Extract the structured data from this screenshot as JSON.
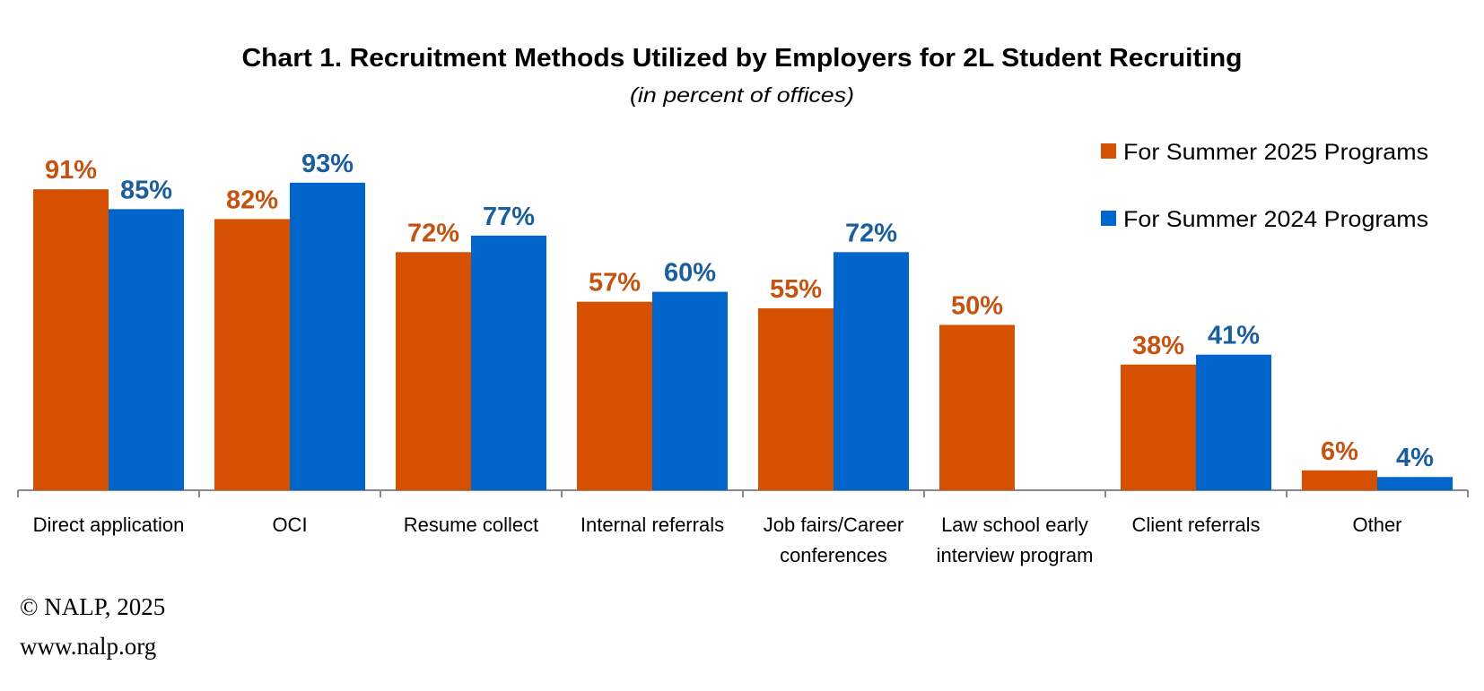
{
  "chart_data": {
    "type": "bar",
    "title": "Chart 1. Recruitment Methods Utilized by Employers for 2L Student Recruiting",
    "subtitle": "(in percent of offices)",
    "xlabel": "",
    "ylabel": "",
    "ylim": [
      0,
      100
    ],
    "grid": false,
    "legend_position": "top-right",
    "categories": [
      [
        "Direct application"
      ],
      [
        "OCI"
      ],
      [
        "Resume collect"
      ],
      [
        "Internal referrals"
      ],
      [
        "Job fairs/Career",
        "conferences"
      ],
      [
        "Law school early",
        "interview program"
      ],
      [
        "Client referrals"
      ],
      [
        "Other"
      ]
    ],
    "series": [
      {
        "name": "For Summer 2025 Programs",
        "color": "#D55000",
        "label_color": "#C5530F",
        "values": [
          91,
          82,
          72,
          57,
          55,
          50,
          38,
          6
        ],
        "labels": [
          "91%",
          "82%",
          "72%",
          "57%",
          "55%",
          "50%",
          "38%",
          "6%"
        ]
      },
      {
        "name": "For Summer 2024 Programs",
        "color": "#0066CC",
        "label_color": "#1A5E9E",
        "values": [
          85,
          93,
          77,
          60,
          72,
          null,
          41,
          4
        ],
        "labels": [
          "85%",
          "93%",
          "77%",
          "60%",
          "72%",
          null,
          "41%",
          "4%"
        ]
      }
    ]
  },
  "footer": {
    "copyright": "© NALP, 2025",
    "website": "www.nalp.org"
  }
}
